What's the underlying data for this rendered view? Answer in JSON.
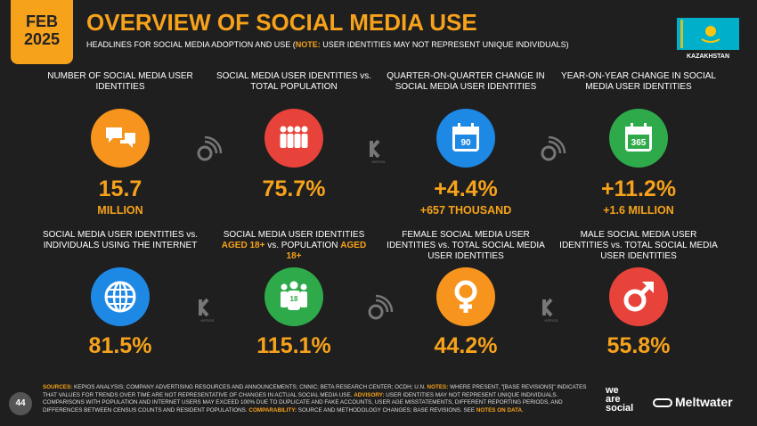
{
  "header": {
    "date_month": "FEB",
    "date_year": "2025",
    "title": "OVERVIEW OF SOCIAL MEDIA USE",
    "subtitle_parts": [
      {
        "text": "HEADLINES FOR SOCIAL MEDIA ADOPTION AND USE ("
      },
      {
        "text": "NOTE:",
        "highlight": true
      },
      {
        "text": " USER IDENTITIES MAY NOT REPRESENT UNIQUE INDIVIDUALS)"
      }
    ],
    "country": "KAZAKHSTAN"
  },
  "stats": [
    {
      "label_parts": [
        {
          "text": "NUMBER OF SOCIAL MEDIA USER IDENTITIES"
        }
      ],
      "icon_color": "#f7941d",
      "value": "15.7",
      "sublabel": "MILLION"
    },
    {
      "label_parts": [
        {
          "text": "SOCIAL MEDIA USER IDENTITIES vs. TOTAL POPULATION"
        }
      ],
      "icon_color": "#e8433a",
      "value": "75.7%"
    },
    {
      "label_parts": [
        {
          "text": "QUARTER-ON-QUARTER CHANGE IN SOCIAL MEDIA USER IDENTITIES"
        }
      ],
      "icon_color": "#1e88e5",
      "icon_text": "90",
      "value": "+4.4%",
      "sublabel": "+657 THOUSAND"
    },
    {
      "label_parts": [
        {
          "text": "YEAR-ON-YEAR CHANGE IN SOCIAL MEDIA USER IDENTITIES"
        }
      ],
      "icon_color": "#2eaa4a",
      "icon_text": "365",
      "value": "+11.2%",
      "sublabel": "+1.6 MILLION"
    },
    {
      "label_parts": [
        {
          "text": "SOCIAL MEDIA USER IDENTITIES vs. INDIVIDUALS USING THE INTERNET"
        }
      ],
      "icon_color": "#1e88e5",
      "value": "81.5%"
    },
    {
      "label_parts": [
        {
          "text": "SOCIAL MEDIA USER IDENTITIES "
        },
        {
          "text": "AGED 18+",
          "highlight": true
        },
        {
          "text": " vs. POPULATION "
        },
        {
          "text": "AGED 18+",
          "highlight": true
        }
      ],
      "icon_color": "#2eaa4a",
      "icon_text": "18",
      "value": "115.1%"
    },
    {
      "label_parts": [
        {
          "text": "FEMALE SOCIAL MEDIA USER IDENTITIES vs. TOTAL SOCIAL MEDIA USER IDENTITIES"
        }
      ],
      "icon_color": "#f7941d",
      "value": "44.2%"
    },
    {
      "label_parts": [
        {
          "text": "MALE SOCIAL MEDIA USER IDENTITIES vs. TOTAL SOCIAL MEDIA USER IDENTITIES"
        }
      ],
      "icon_color": "#e8433a",
      "value": "55.8%"
    }
  ],
  "watermark": "KEPIOS",
  "footer": {
    "page": "44",
    "notes_parts": [
      {
        "text": "SOURCES:",
        "highlight": true
      },
      {
        "text": " KEPIOS ANALYSIS; COMPANY ADVERTISING RESOURCES AND ANNOUNCEMENTS; CNNIC; BETA RESEARCH CENTER; OCDH; U.N. "
      },
      {
        "text": "NOTES:",
        "highlight": true
      },
      {
        "text": " WHERE PRESENT, \"[BASE REVISIONS]\" INDICATES THAT VALUES FOR TRENDS OVER TIME ARE NOT REPRESENTATIVE OF CHANGES IN ACTUAL SOCIAL MEDIA USE. "
      },
      {
        "text": "ADVISORY:",
        "highlight": true
      },
      {
        "text": " USER IDENTITIES MAY NOT REPRESENT UNIQUE INDIVIDUALS. COMPARISONS WITH POPULATION AND INTERNET USERS MAY EXCEED 100% DUE TO DUPLICATE AND FAKE ACCOUNTS, USER AGE MISSTATEMENTS, DIFFERENT REPORTING PERIODS, AND DIFFERENCES BETWEEN CENSUS COUNTS AND RESIDENT POPULATIONS. "
      },
      {
        "text": "COMPARABILITY:",
        "highlight": true
      },
      {
        "text": " SOURCE AND METHODOLOGY CHANGES; BASE REVISIONS. SEE "
      },
      {
        "text": "NOTES ON DATA",
        "highlight": true
      },
      {
        "text": "."
      }
    ],
    "logo_1": [
      "we",
      "are",
      "social"
    ],
    "logo_2": "Meltwater"
  }
}
